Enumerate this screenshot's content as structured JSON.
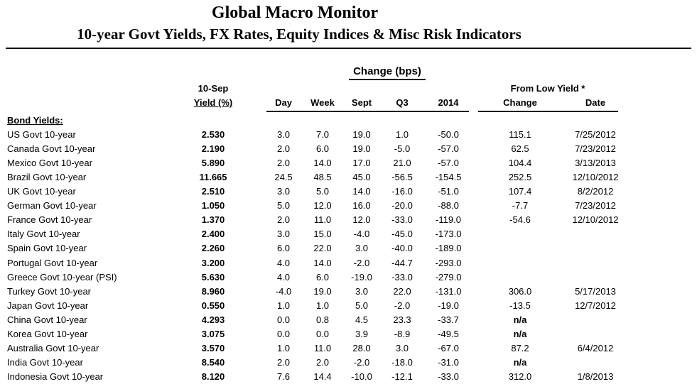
{
  "header": {
    "title": "Global Macro Monitor",
    "subtitle": "10-year Govt Yields, FX Rates, Equity Indices & Misc Risk Indicators"
  },
  "table": {
    "group_heading": "Change (bps)",
    "columns": {
      "asof_date": "10-Sep",
      "yield_pct": "Yield (%)",
      "day": "Day",
      "week": "Week",
      "sept": "Sept",
      "q3": "Q3",
      "y2014": "2014",
      "from_low_group": "From Low Yield *",
      "change": "Change",
      "date": "Date"
    },
    "section_label": "Bond Yields:",
    "rows": [
      {
        "label": "US Govt 10-year",
        "yield": "2.530",
        "day": "3.0",
        "week": "7.0",
        "sept": "19.0",
        "q3": "1.0",
        "y2014": "-50.0",
        "change": "115.1",
        "date": "7/25/2012"
      },
      {
        "label": "Canada Govt 10-year",
        "yield": "2.190",
        "day": "2.0",
        "week": "6.0",
        "sept": "19.0",
        "q3": "-5.0",
        "y2014": "-57.0",
        "change": "62.5",
        "date": "7/23/2012"
      },
      {
        "label": "Mexico Govt 10-year",
        "yield": "5.890",
        "day": "2.0",
        "week": "14.0",
        "sept": "17.0",
        "q3": "21.0",
        "y2014": "-57.0",
        "change": "104.4",
        "date": "3/13/2013"
      },
      {
        "label": "Brazil Govt 10-year",
        "yield": "11.665",
        "day": "24.5",
        "week": "48.5",
        "sept": "45.0",
        "q3": "-56.5",
        "y2014": "-154.5",
        "change": "252.5",
        "date": "12/10/2012"
      },
      {
        "label": "UK Govt 10-year",
        "yield": "2.510",
        "day": "3.0",
        "week": "5.0",
        "sept": "14.0",
        "q3": "-16.0",
        "y2014": "-51.0",
        "change": "107.4",
        "date": "8/2/2012"
      },
      {
        "label": "German Govt 10-year",
        "yield": "1.050",
        "day": "5.0",
        "week": "12.0",
        "sept": "16.0",
        "q3": "-20.0",
        "y2014": "-88.0",
        "change": "-7.7",
        "date": "7/23/2012"
      },
      {
        "label": "France Govt 10-year",
        "yield": "1.370",
        "day": "2.0",
        "week": "11.0",
        "sept": "12.0",
        "q3": "-33.0",
        "y2014": "-119.0",
        "change": "-54.6",
        "date": "12/10/2012"
      },
      {
        "label": "Italy Govt 10-year",
        "yield": "2.400",
        "day": "3.0",
        "week": "15.0",
        "sept": "-4.0",
        "q3": "-45.0",
        "y2014": "-173.0",
        "change": "",
        "date": ""
      },
      {
        "label": "Spain Govt 10-year",
        "yield": "2.260",
        "day": "6.0",
        "week": "22.0",
        "sept": "3.0",
        "q3": "-40.0",
        "y2014": "-189.0",
        "change": "",
        "date": ""
      },
      {
        "label": "Portugal Govt 10-year",
        "yield": "3.200",
        "day": "4.0",
        "week": "14.0",
        "sept": "-2.0",
        "q3": "-44.7",
        "y2014": "-293.0",
        "change": "",
        "date": ""
      },
      {
        "label": "Greece Govt 10-year (PSI)",
        "yield": "5.630",
        "day": "4.0",
        "week": "6.0",
        "sept": "-19.0",
        "q3": "-33.0",
        "y2014": "-279.0",
        "change": "",
        "date": ""
      },
      {
        "label": "Turkey Govt 10-year",
        "yield": "8.960",
        "day": "-4.0",
        "week": "19.0",
        "sept": "3.0",
        "q3": "22.0",
        "y2014": "-131.0",
        "change": "306.0",
        "date": "5/17/2013"
      },
      {
        "label": "Japan Govt 10-year",
        "yield": "0.550",
        "day": "1.0",
        "week": "1.0",
        "sept": "5.0",
        "q3": "-2.0",
        "y2014": "-19.0",
        "change": "-13.5",
        "date": "12/7/2012"
      },
      {
        "label": "China Govt 10-year",
        "yield": "4.293",
        "day": "0.0",
        "week": "0.8",
        "sept": "4.5",
        "q3": "23.3",
        "y2014": "-33.7",
        "change": "n/a",
        "date": ""
      },
      {
        "label": "Korea Govt 10-year",
        "yield": "3.075",
        "day": "0.0",
        "week": "0.0",
        "sept": "3.9",
        "q3": "-8.9",
        "y2014": "-49.5",
        "change": "n/a",
        "date": ""
      },
      {
        "label": "Australia Govt 10-year",
        "yield": "3.570",
        "day": "1.0",
        "week": "11.0",
        "sept": "28.0",
        "q3": "3.0",
        "y2014": "-67.0",
        "change": "87.2",
        "date": "6/4/2012"
      },
      {
        "label": "India Govt 10-year",
        "yield": "8.540",
        "day": "2.0",
        "week": "2.0",
        "sept": "-2.0",
        "q3": "-18.0",
        "y2014": "-31.0",
        "change": "n/a",
        "date": ""
      },
      {
        "label": "Indonesia Govt 10-year",
        "yield": "8.120",
        "day": "7.6",
        "week": "14.4",
        "sept": "-10.0",
        "q3": "-12.1",
        "y2014": "-33.0",
        "change": "312.0",
        "date": "1/8/2013"
      }
    ]
  },
  "colors": {
    "text": "#000000",
    "background": "#ffffff"
  }
}
